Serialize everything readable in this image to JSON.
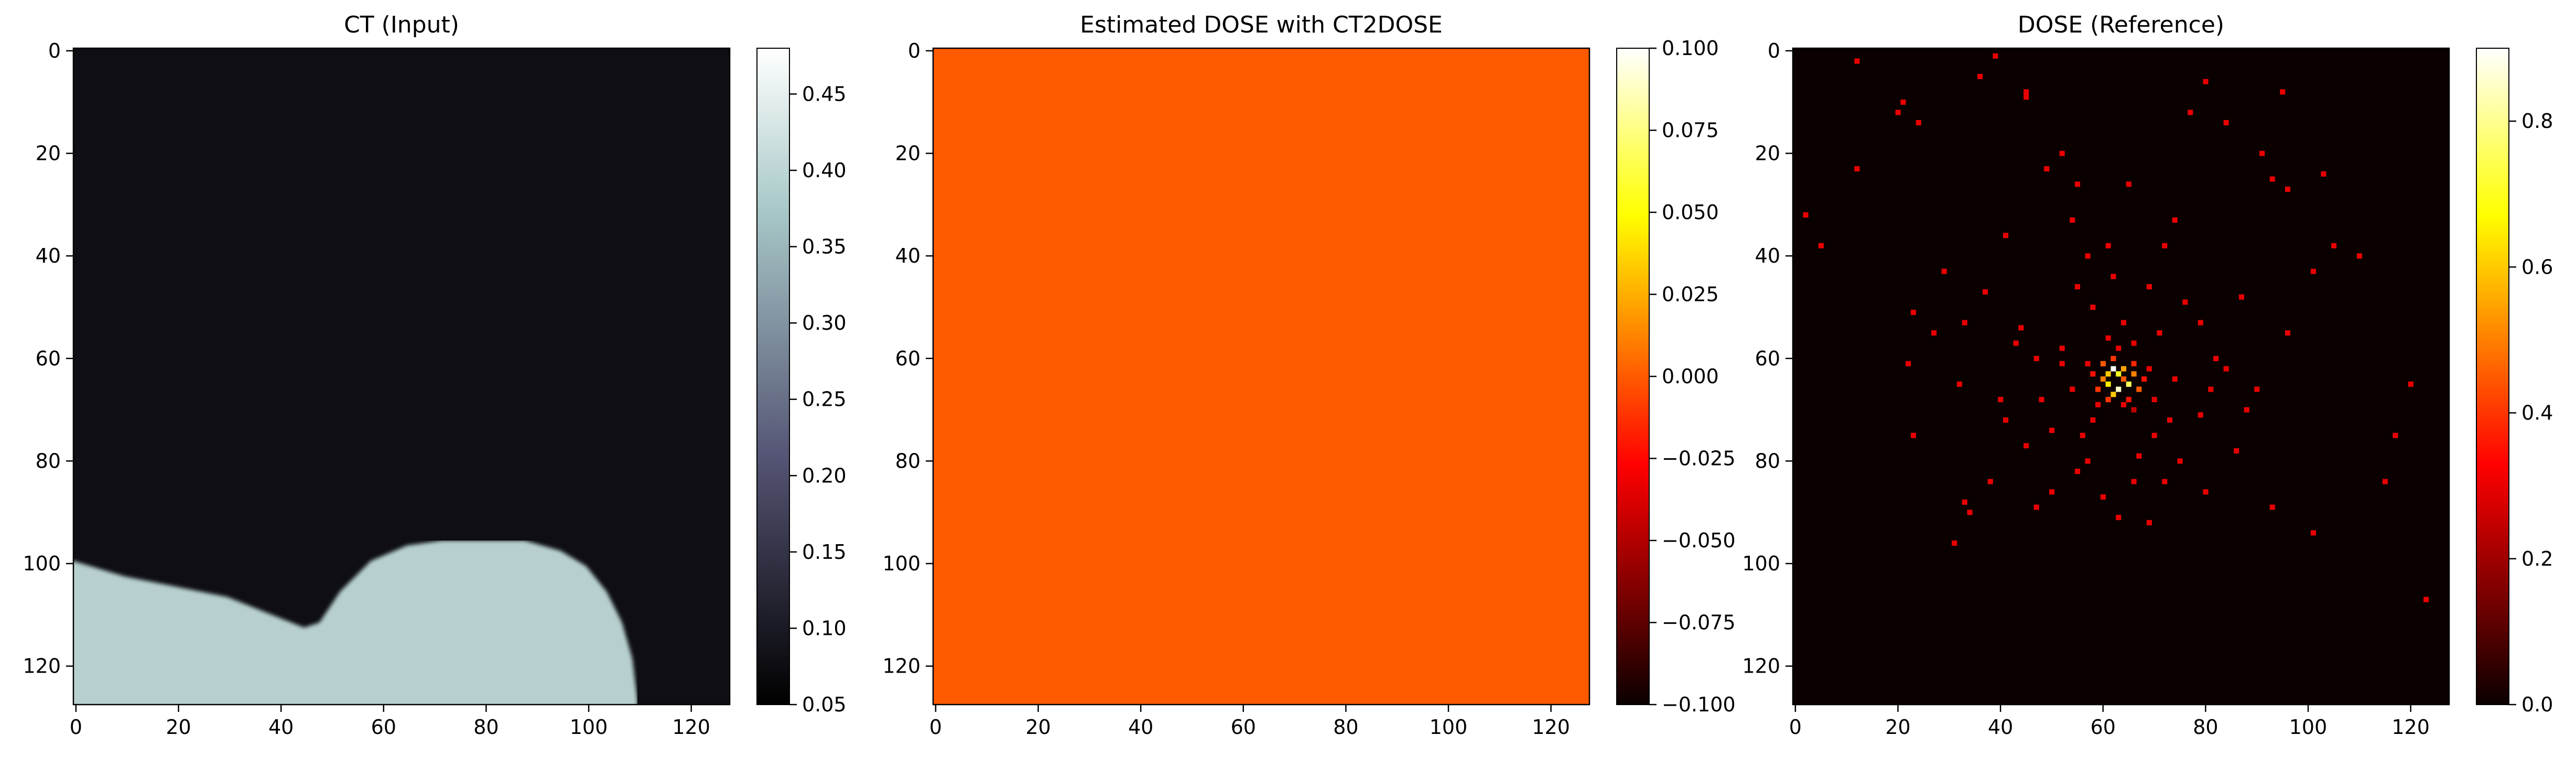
{
  "chart_data": [
    {
      "type": "heatmap",
      "title": "CT (Input)",
      "colormap": "bone",
      "x_ticks": [
        "0",
        "20",
        "40",
        "60",
        "80",
        "100",
        "120"
      ],
      "y_ticks": [
        "0",
        "20",
        "40",
        "60",
        "80",
        "100",
        "120"
      ],
      "colorbar": {
        "range": [
          0.05,
          0.48
        ],
        "ticks": [
          "0.05",
          "0.10",
          "0.15",
          "0.20",
          "0.25",
          "0.30",
          "0.35",
          "0.40",
          "0.45"
        ]
      },
      "grid_size": 128,
      "background_value": 0.055,
      "foreground_value": 0.4,
      "bright_region_boundary": [
        [
          0,
          100
        ],
        [
          10,
          103
        ],
        [
          20,
          105
        ],
        [
          30,
          107
        ],
        [
          40,
          111
        ],
        [
          45,
          113
        ],
        [
          48,
          112
        ],
        [
          52,
          106
        ],
        [
          58,
          100
        ],
        [
          65,
          97
        ],
        [
          72,
          96
        ],
        [
          80,
          96
        ],
        [
          88,
          96
        ],
        [
          95,
          98
        ],
        [
          100,
          101
        ],
        [
          104,
          106
        ],
        [
          107,
          112
        ],
        [
          109,
          119
        ],
        [
          110,
          127
        ]
      ]
    },
    {
      "type": "heatmap",
      "title": "Estimated DOSE with CT2DOSE",
      "colormap": "hot",
      "x_ticks": [
        "0",
        "20",
        "40",
        "60",
        "80",
        "100",
        "120"
      ],
      "y_ticks": [
        "0",
        "20",
        "40",
        "60",
        "80",
        "100",
        "120"
      ],
      "colorbar": {
        "range": [
          -0.1,
          0.1
        ],
        "ticks": [
          "0.100",
          "0.075",
          "0.050",
          "0.025",
          "0.000",
          "−0.025",
          "−0.050",
          "−0.075",
          "−0.100"
        ]
      },
      "grid_size": 128,
      "uniform_value": 0.0,
      "fill_color": "#ff5a00"
    },
    {
      "type": "heatmap",
      "title": "DOSE (Reference)",
      "colormap": "hot",
      "x_ticks": [
        "0",
        "20",
        "40",
        "60",
        "80",
        "100",
        "120"
      ],
      "y_ticks": [
        "0",
        "20",
        "40",
        "60",
        "80",
        "100",
        "120"
      ],
      "colorbar": {
        "range": [
          0.0,
          0.9
        ],
        "ticks": [
          "0.0",
          "0.2",
          "0.4",
          "0.6",
          "0.8"
        ]
      },
      "grid_size": 128,
      "background_value": 0.02,
      "hotspot_center": [
        63,
        64
      ],
      "hotspot_pixels": [
        [
          62,
          62,
          0.9
        ],
        [
          63,
          63,
          0.7
        ],
        [
          61,
          63,
          0.6
        ],
        [
          64,
          62,
          0.55
        ],
        [
          63,
          66,
          0.85
        ],
        [
          61,
          65,
          0.65
        ],
        [
          60,
          64,
          0.5
        ],
        [
          65,
          65,
          0.75
        ],
        [
          66,
          63,
          0.5
        ],
        [
          62,
          67,
          0.6
        ],
        [
          64,
          64,
          0.45
        ],
        [
          60,
          61,
          0.45
        ],
        [
          67,
          66,
          0.45
        ],
        [
          59,
          66,
          0.4
        ],
        [
          65,
          68,
          0.35
        ],
        [
          62,
          60,
          0.4
        ],
        [
          66,
          61,
          0.38
        ],
        [
          58,
          63,
          0.35
        ],
        [
          61,
          68,
          0.4
        ],
        [
          64,
          69,
          0.3
        ],
        [
          68,
          64,
          0.35
        ],
        [
          57,
          61,
          0.3
        ],
        [
          63,
          58,
          0.3
        ],
        [
          69,
          62,
          0.3
        ],
        [
          59,
          69,
          0.3
        ],
        [
          66,
          70,
          0.25
        ]
      ],
      "scatter_pixels": [
        [
          12,
          2
        ],
        [
          2,
          32
        ],
        [
          5,
          38
        ],
        [
          12,
          23
        ],
        [
          21,
          10
        ],
        [
          20,
          12
        ],
        [
          24,
          14
        ],
        [
          36,
          5
        ],
        [
          39,
          1
        ],
        [
          45,
          8
        ],
        [
          45,
          9
        ],
        [
          52,
          20
        ],
        [
          54,
          33
        ],
        [
          49,
          23
        ],
        [
          77,
          12
        ],
        [
          80,
          6
        ],
        [
          95,
          8
        ],
        [
          93,
          25
        ],
        [
          96,
          27
        ],
        [
          103,
          24
        ],
        [
          110,
          40
        ],
        [
          87,
          48
        ],
        [
          96,
          55
        ],
        [
          120,
          65
        ],
        [
          117,
          75
        ],
        [
          115,
          84
        ],
        [
          93,
          89
        ],
        [
          123,
          107
        ],
        [
          101,
          94
        ],
        [
          40,
          68
        ],
        [
          32,
          65
        ],
        [
          27,
          55
        ],
        [
          23,
          51
        ],
        [
          22,
          61
        ],
        [
          23,
          75
        ],
        [
          33,
          88
        ],
        [
          34,
          90
        ],
        [
          31,
          96
        ],
        [
          44,
          54
        ],
        [
          47,
          60
        ],
        [
          41,
          72
        ],
        [
          52,
          61
        ],
        [
          55,
          46
        ],
        [
          57,
          40
        ],
        [
          61,
          38
        ],
        [
          72,
          38
        ],
        [
          74,
          33
        ],
        [
          76,
          49
        ],
        [
          79,
          53
        ],
        [
          82,
          60
        ],
        [
          81,
          66
        ],
        [
          79,
          71
        ],
        [
          75,
          80
        ],
        [
          72,
          84
        ],
        [
          66,
          84
        ],
        [
          55,
          82
        ],
        [
          50,
          74
        ],
        [
          45,
          77
        ],
        [
          54,
          66
        ],
        [
          52,
          58
        ],
        [
          58,
          50
        ],
        [
          69,
          46
        ],
        [
          71,
          55
        ],
        [
          73,
          72
        ],
        [
          70,
          75
        ],
        [
          67,
          79
        ],
        [
          56,
          75
        ],
        [
          60,
          87
        ],
        [
          63,
          91
        ],
        [
          43,
          57
        ],
        [
          38,
          84
        ],
        [
          86,
          78
        ],
        [
          88,
          70
        ],
        [
          90,
          66
        ],
        [
          84,
          62
        ],
        [
          48,
          68
        ],
        [
          58,
          72
        ],
        [
          70,
          68
        ],
        [
          74,
          64
        ],
        [
          62,
          44
        ],
        [
          64,
          53
        ],
        [
          50,
          86
        ],
        [
          69,
          92
        ],
        [
          80,
          86
        ],
        [
          47,
          89
        ],
        [
          37,
          47
        ],
        [
          29,
          43
        ],
        [
          33,
          53
        ],
        [
          55,
          26
        ],
        [
          65,
          26
        ],
        [
          84,
          14
        ],
        [
          91,
          20
        ],
        [
          41,
          36
        ],
        [
          101,
          43
        ],
        [
          105,
          38
        ],
        [
          57,
          80
        ],
        [
          61,
          56
        ],
        [
          66,
          57
        ]
      ]
    }
  ]
}
